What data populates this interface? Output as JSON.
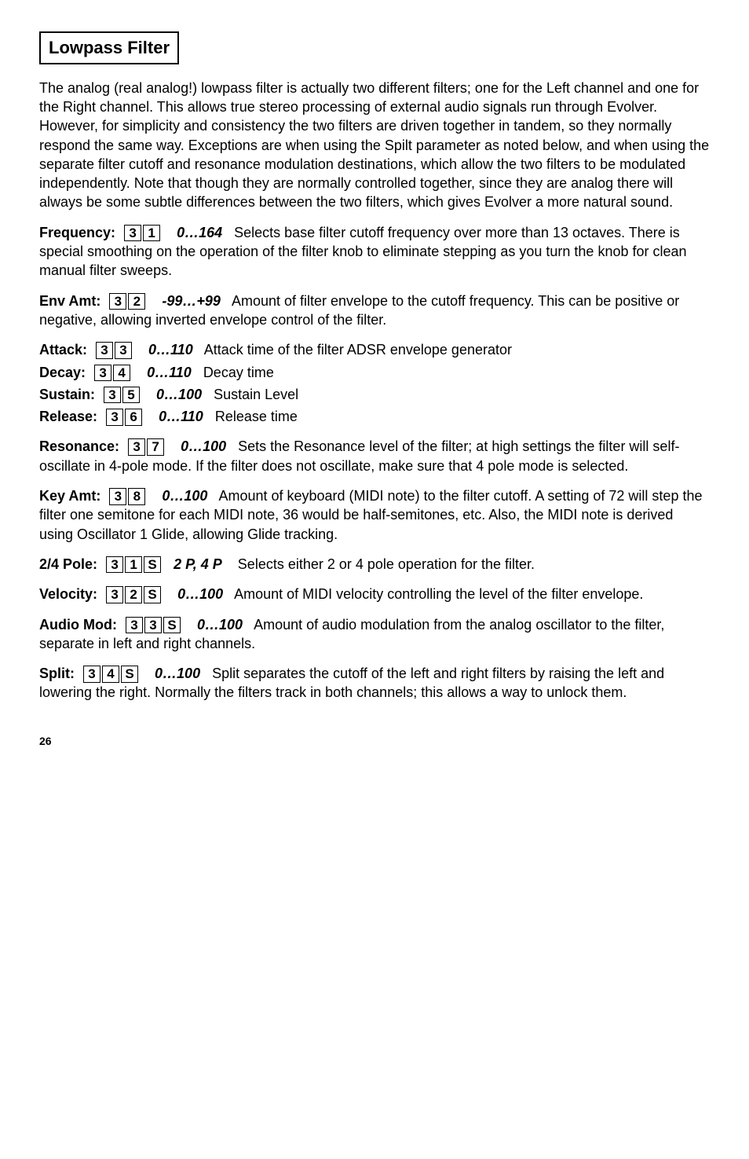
{
  "section_title": "Lowpass Filter",
  "intro": "The analog (real analog!) lowpass filter is actually two different filters; one for the Left channel and one for the Right channel. This allows true stereo processing of external audio signals run through Evolver. However, for simplicity and consistency the two filters are driven together in tandem, so they normally respond the same way. Exceptions are when using the Spilt parameter as noted below, and when using the separate filter cutoff and resonance modulation destinations, which allow the two filters to be modulated independently. Note that though they are normally controlled together, since they are analog there will always be some subtle differences between the two filters, which gives Evolver a more natural sound.",
  "frequency": {
    "label": "Frequency:",
    "keys": [
      "3",
      "1"
    ],
    "range": "0…164",
    "desc1": "Selects base filter cutoff frequency over more than 13",
    "desc2": "octaves. There is special smoothing on the operation of the filter knob to eliminate stepping as you turn the knob for clean manual filter sweeps."
  },
  "envamt": {
    "label": "Env Amt:",
    "keys": [
      "3",
      "2"
    ],
    "range": "-99…+99",
    "desc1": "Amount of filter envelope to the cutoff frequency. This",
    "desc2": "can be positive or negative, allowing inverted envelope control of the filter."
  },
  "attack": {
    "label": "Attack:",
    "keys": [
      "3",
      "3"
    ],
    "range": "0…110",
    "desc": "Attack time of the filter ADSR envelope generator"
  },
  "decay": {
    "label": "Decay:",
    "keys": [
      "3",
      "4"
    ],
    "range": "0…110",
    "desc": "Decay time"
  },
  "sustain": {
    "label": "Sustain:",
    "keys": [
      "3",
      "5"
    ],
    "range": "0…100",
    "desc": "Sustain Level"
  },
  "release": {
    "label": "Release:",
    "keys": [
      "3",
      "6"
    ],
    "range": "0…110",
    "desc": "Release time"
  },
  "resonance": {
    "label": "Resonance:",
    "keys": [
      "3",
      "7"
    ],
    "range": "0…100",
    "desc1": "Sets the Resonance level of the filter; at high settings",
    "desc2": "the filter will self-oscillate in 4-pole mode. If the filter does not oscillate, make sure that 4 pole mode is selected."
  },
  "keyamt": {
    "label": "Key Amt:",
    "keys": [
      "3",
      "8"
    ],
    "range": "0…100",
    "desc1": "Amount of keyboard (MIDI note) to the filter cutoff. A",
    "desc2": "setting of 72 will step the filter one semitone for each MIDI note, 36 would be half-semitones, etc. Also, the MIDI note is derived using Oscillator 1 Glide, allowing Glide tracking."
  },
  "pole": {
    "label": "2/4 Pole:",
    "keys": [
      "3",
      "1",
      "S"
    ],
    "range": "2 P, 4 P",
    "desc": "Selects either 2 or 4 pole operation for the filter."
  },
  "velocity": {
    "label": "Velocity:",
    "keys": [
      "3",
      "2",
      "S"
    ],
    "range": "0…100",
    "desc1": "Amount of MIDI velocity controlling the level of the filter",
    "desc2": "envelope."
  },
  "audiomod": {
    "label": "Audio Mod:",
    "keys": [
      "3",
      "3",
      "S"
    ],
    "range": "0…100",
    "desc1": "Amount of audio modulation from the analog",
    "desc2": "oscillator to the filter, separate in left and right channels."
  },
  "split": {
    "label": "Split:",
    "keys": [
      "3",
      "4",
      "S"
    ],
    "range": "0…100",
    "desc1": "Split separates the cutoff of the left and right filters by",
    "desc2": "raising the left and lowering the right. Normally the filters track in both channels; this allows a way to unlock them."
  },
  "pagenum": "26"
}
